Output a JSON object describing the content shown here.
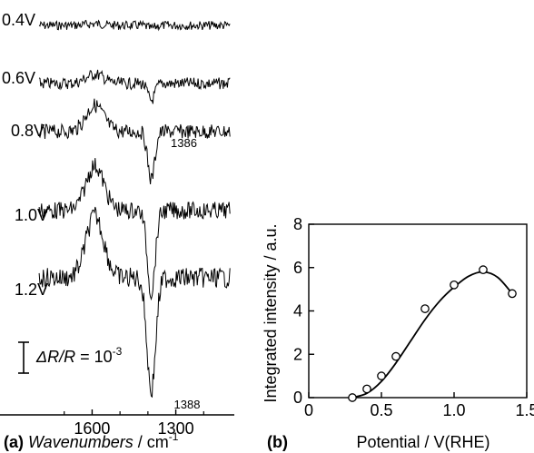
{
  "chart_data": [
    {
      "panel": "(a)",
      "type": "line",
      "xlabel_italic": "Wavenumbers",
      "xlabel_unit": " / cm",
      "xlabel_unit_sup": "-1",
      "x_ticks": [
        1600,
        1300
      ],
      "xlim": [
        1800,
        1100
      ],
      "series": [
        {
          "name": "0.4V",
          "band_depth": 0.05,
          "band_width": 18
        },
        {
          "name": "0.6V",
          "band_depth": 0.3,
          "band_width": 18
        },
        {
          "name": "0.8V",
          "band_depth": 0.85,
          "band_width": 18
        },
        {
          "name": "1.0V",
          "band_depth": 1.45,
          "band_width": 20
        },
        {
          "name": "1.2V",
          "band_depth": 2.0,
          "band_width": 22
        }
      ],
      "annotations": [
        {
          "text": "1386",
          "x": 1386
        },
        {
          "text": "1388",
          "x": 1388
        }
      ],
      "scalebar": {
        "prefix": "ΔR/R",
        "rest": " = 10",
        "sup": "-3"
      }
    },
    {
      "panel": "(b)",
      "type": "scatter",
      "xlabel": "Potential / V(RHE)",
      "ylabel": "Integrated intensity / a.u.",
      "xlim": [
        0,
        1.5
      ],
      "ylim": [
        0,
        8
      ],
      "x_ticks": [
        0,
        0.5,
        1.0,
        1.5
      ],
      "x_tick_labels": [
        "0",
        "0.5",
        "1.0",
        "1.5"
      ],
      "y_ticks": [
        0,
        2,
        4,
        6,
        8
      ],
      "y_tick_labels": [
        "0",
        "2",
        "4",
        "6",
        "8"
      ],
      "points": [
        {
          "x": 0.3,
          "y": 0.0
        },
        {
          "x": 0.4,
          "y": 0.4
        },
        {
          "x": 0.5,
          "y": 1.0
        },
        {
          "x": 0.6,
          "y": 1.9
        },
        {
          "x": 0.8,
          "y": 4.1
        },
        {
          "x": 1.0,
          "y": 5.2
        },
        {
          "x": 1.2,
          "y": 5.9
        },
        {
          "x": 1.4,
          "y": 4.8
        }
      ],
      "fit_curve": [
        {
          "x": 0.3,
          "y": 0.0
        },
        {
          "x": 0.4,
          "y": 0.2
        },
        {
          "x": 0.5,
          "y": 0.75
        },
        {
          "x": 0.6,
          "y": 1.6
        },
        {
          "x": 0.7,
          "y": 2.6
        },
        {
          "x": 0.8,
          "y": 3.6
        },
        {
          "x": 0.9,
          "y": 4.45
        },
        {
          "x": 1.0,
          "y": 5.1
        },
        {
          "x": 1.1,
          "y": 5.6
        },
        {
          "x": 1.2,
          "y": 5.8
        },
        {
          "x": 1.3,
          "y": 5.55
        },
        {
          "x": 1.4,
          "y": 4.8
        }
      ]
    }
  ]
}
